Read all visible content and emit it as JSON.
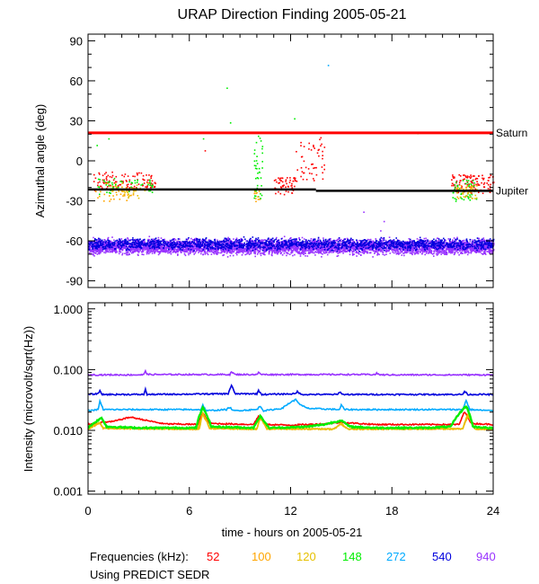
{
  "title": "URAP Direction Finding  2005-05-21",
  "colors": {
    "52": "#ff0000",
    "100": "#ffa500",
    "120": "#e6c000",
    "148": "#00ee00",
    "272": "#00aaff",
    "540": "#0000dd",
    "940": "#9933ff",
    "saturn": "#ff0000",
    "jupiter": "#000000"
  },
  "chart_data": [
    {
      "type": "scatter",
      "title": "URAP Direction Finding  2005-05-21",
      "ylabel": "Azimuthal angle (deg)",
      "xlim": [
        0,
        24
      ],
      "ylim": [
        -95,
        95
      ],
      "yticks": [
        90,
        60,
        30,
        0,
        -30,
        -60,
        -90
      ],
      "reference_lines": [
        {
          "name": "Saturn",
          "y": 21,
          "color": "#ff0000"
        },
        {
          "name": "Jupiter",
          "segments": [
            [
              0,
              13.5,
              -21.5
            ],
            [
              13.5,
              24,
              -22.5
            ]
          ],
          "color": "#000000"
        }
      ],
      "band": {
        "freq": "940",
        "x_range": [
          0,
          24
        ],
        "y_center": -64,
        "y_spread": 8
      },
      "band_540": {
        "freq": "540",
        "x_range": [
          0,
          24
        ],
        "y_center": -62,
        "y_spread": 6
      },
      "clusters": [
        {
          "freq": "52",
          "x": [
            0.3,
            4.0
          ],
          "y": [
            -22,
            -8
          ],
          "n": 120
        },
        {
          "freq": "100",
          "x": [
            0.4,
            2.8
          ],
          "y": [
            -30,
            -18
          ],
          "n": 40
        },
        {
          "freq": "120",
          "x": [
            1.0,
            3.5
          ],
          "y": [
            -28,
            -16
          ],
          "n": 30
        },
        {
          "freq": "148",
          "x": [
            0.5,
            3.8
          ],
          "y": [
            -25,
            -12
          ],
          "n": 50
        },
        {
          "freq": "52",
          "x": [
            11.0,
            12.4
          ],
          "y": [
            -25,
            -12
          ],
          "n": 60
        },
        {
          "freq": "52",
          "x": [
            12.2,
            14.0
          ],
          "y": [
            -15,
            18
          ],
          "n": 50
        },
        {
          "freq": "148",
          "x": [
            9.8,
            10.3
          ],
          "y": [
            -28,
            20
          ],
          "n": 40
        },
        {
          "freq": "100",
          "x": [
            9.8,
            10.2
          ],
          "y": [
            -30,
            -22
          ],
          "n": 10
        },
        {
          "freq": "52",
          "x": [
            21.5,
            24.0
          ],
          "y": [
            -24,
            -10
          ],
          "n": 110
        },
        {
          "freq": "148",
          "x": [
            21.5,
            23.0
          ],
          "y": [
            -30,
            -14
          ],
          "n": 50
        },
        {
          "freq": "100",
          "x": [
            21.8,
            22.8
          ],
          "y": [
            -28,
            -18
          ],
          "n": 25
        },
        {
          "freq": "120",
          "x": [
            22.0,
            23.0
          ],
          "y": [
            -28,
            -18
          ],
          "n": 20
        }
      ],
      "stray_points": [
        {
          "freq": "148",
          "x": 8.2,
          "y": 55
        },
        {
          "freq": "148",
          "x": 8.4,
          "y": 29
        },
        {
          "freq": "148",
          "x": 12.2,
          "y": 32
        },
        {
          "freq": "272",
          "x": 14.2,
          "y": 72
        },
        {
          "freq": "148",
          "x": 6.8,
          "y": 17
        },
        {
          "freq": "148",
          "x": 19.5,
          "y": 21
        },
        {
          "freq": "940",
          "x": 17.5,
          "y": -45
        },
        {
          "freq": "940",
          "x": 16.3,
          "y": -38
        },
        {
          "freq": "940",
          "x": 17.3,
          "y": -52
        },
        {
          "freq": "52",
          "x": 6.9,
          "y": 8
        },
        {
          "freq": "148",
          "x": 1.2,
          "y": 17
        },
        {
          "freq": "148",
          "x": 0.5,
          "y": 12
        }
      ]
    },
    {
      "type": "line",
      "ylabel": "Intensity (microvolt/sqrt(Hz))",
      "xlabel": "time - hours on 2005-05-21",
      "xlim": [
        0,
        24
      ],
      "ylim_log10": [
        -3.05,
        0.1
      ],
      "yticks": [
        1.0,
        0.1,
        0.01,
        0.001
      ],
      "ytick_labels": [
        "1.000",
        "0.100",
        "0.010",
        "0.001"
      ],
      "xticks": [
        0,
        6,
        12,
        18,
        24
      ],
      "xtick_labels": [
        "0",
        "6",
        "12",
        "18",
        "24"
      ],
      "series": [
        {
          "name": "940",
          "base": 0.082,
          "points": [
            [
              0,
              0.082
            ],
            [
              3.3,
              0.082
            ],
            [
              3.4,
              0.097
            ],
            [
              3.5,
              0.083
            ],
            [
              8.4,
              0.083
            ],
            [
              8.5,
              0.092
            ],
            [
              8.7,
              0.083
            ],
            [
              10.0,
              0.083
            ],
            [
              10.1,
              0.089
            ],
            [
              10.3,
              0.083
            ],
            [
              17.0,
              0.083
            ],
            [
              17.1,
              0.087
            ],
            [
              17.3,
              0.082
            ],
            [
              24,
              0.082
            ]
          ]
        },
        {
          "name": "540",
          "base": 0.038,
          "points": [
            [
              0,
              0.039
            ],
            [
              0.6,
              0.04
            ],
            [
              0.7,
              0.046
            ],
            [
              0.8,
              0.039
            ],
            [
              3.3,
              0.039
            ],
            [
              3.4,
              0.047
            ],
            [
              3.5,
              0.039
            ],
            [
              8.3,
              0.04
            ],
            [
              8.5,
              0.055
            ],
            [
              8.7,
              0.04
            ],
            [
              10.0,
              0.04
            ],
            [
              10.1,
              0.045
            ],
            [
              10.3,
              0.039
            ],
            [
              12.3,
              0.04
            ],
            [
              12.4,
              0.044
            ],
            [
              12.6,
              0.039
            ],
            [
              14.8,
              0.039
            ],
            [
              14.9,
              0.043
            ],
            [
              15.1,
              0.039
            ],
            [
              22.2,
              0.039
            ],
            [
              22.3,
              0.044
            ],
            [
              22.5,
              0.039
            ],
            [
              24,
              0.039
            ]
          ]
        },
        {
          "name": "272",
          "base": 0.021,
          "points": [
            [
              0,
              0.021
            ],
            [
              0.6,
              0.022
            ],
            [
              0.7,
              0.03
            ],
            [
              0.9,
              0.022
            ],
            [
              6.7,
              0.022
            ],
            [
              6.8,
              0.026
            ],
            [
              7.0,
              0.021
            ],
            [
              8.2,
              0.022
            ],
            [
              8.4,
              0.024
            ],
            [
              8.6,
              0.021
            ],
            [
              10.0,
              0.022
            ],
            [
              10.2,
              0.025
            ],
            [
              10.4,
              0.021
            ],
            [
              11.5,
              0.023
            ],
            [
              12.0,
              0.029
            ],
            [
              12.3,
              0.032
            ],
            [
              12.6,
              0.026
            ],
            [
              13.0,
              0.023
            ],
            [
              14.9,
              0.022
            ],
            [
              15.0,
              0.026
            ],
            [
              15.2,
              0.022
            ],
            [
              22.2,
              0.022
            ],
            [
              22.4,
              0.031
            ],
            [
              22.6,
              0.022
            ],
            [
              24,
              0.021
            ]
          ]
        },
        {
          "name": "52",
          "base": 0.012,
          "points": [
            [
              0,
              0.0125
            ],
            [
              0.8,
              0.0135
            ],
            [
              1.5,
              0.014
            ],
            [
              2.5,
              0.0165
            ],
            [
              3.5,
              0.0145
            ],
            [
              4.5,
              0.0128
            ],
            [
              6.5,
              0.0125
            ],
            [
              6.8,
              0.019
            ],
            [
              7.2,
              0.013
            ],
            [
              9.8,
              0.0125
            ],
            [
              10.1,
              0.017
            ],
            [
              10.5,
              0.0125
            ],
            [
              12.0,
              0.0122
            ],
            [
              14.0,
              0.0128
            ],
            [
              15.0,
              0.0135
            ],
            [
              17.0,
              0.0125
            ],
            [
              22.0,
              0.0125
            ],
            [
              22.3,
              0.02
            ],
            [
              22.7,
              0.013
            ],
            [
              24,
              0.0125
            ]
          ]
        },
        {
          "name": "100",
          "base": 0.0105,
          "points": [
            [
              0,
              0.0105
            ],
            [
              0.7,
              0.013
            ],
            [
              0.9,
              0.0108
            ],
            [
              6.5,
              0.0105
            ],
            [
              6.8,
              0.018
            ],
            [
              7.2,
              0.0108
            ],
            [
              10.0,
              0.0105
            ],
            [
              10.2,
              0.016
            ],
            [
              10.6,
              0.0106
            ],
            [
              14.5,
              0.0105
            ],
            [
              15.0,
              0.0125
            ],
            [
              15.4,
              0.0105
            ],
            [
              22.2,
              0.0106
            ],
            [
              22.5,
              0.017
            ],
            [
              22.9,
              0.0105
            ],
            [
              24,
              0.0105
            ]
          ]
        },
        {
          "name": "120",
          "base": 0.0105,
          "points": [
            [
              0,
              0.0105
            ],
            [
              0.7,
              0.0135
            ],
            [
              0.9,
              0.0108
            ],
            [
              6.6,
              0.0105
            ],
            [
              6.8,
              0.019
            ],
            [
              7.2,
              0.0108
            ],
            [
              10.0,
              0.0105
            ],
            [
              10.2,
              0.0165
            ],
            [
              10.6,
              0.0106
            ],
            [
              14.6,
              0.0105
            ],
            [
              15.0,
              0.013
            ],
            [
              15.4,
              0.0105
            ],
            [
              22.2,
              0.0107
            ],
            [
              22.5,
              0.018
            ],
            [
              22.9,
              0.0105
            ],
            [
              24,
              0.0105
            ]
          ]
        },
        {
          "name": "148",
          "base": 0.0108,
          "points": [
            [
              0,
              0.011
            ],
            [
              0.8,
              0.016
            ],
            [
              1.1,
              0.0115
            ],
            [
              3.0,
              0.011
            ],
            [
              6.4,
              0.011
            ],
            [
              6.8,
              0.0235
            ],
            [
              7.3,
              0.0115
            ],
            [
              9.8,
              0.011
            ],
            [
              10.2,
              0.017
            ],
            [
              10.7,
              0.011
            ],
            [
              12.0,
              0.0112
            ],
            [
              13.0,
              0.0115
            ],
            [
              14.0,
              0.0125
            ],
            [
              15.0,
              0.0145
            ],
            [
              15.5,
              0.0115
            ],
            [
              17.0,
              0.011
            ],
            [
              20.0,
              0.011
            ],
            [
              21.5,
              0.0115
            ],
            [
              22.4,
              0.025
            ],
            [
              22.8,
              0.0115
            ],
            [
              24,
              0.0108
            ]
          ]
        }
      ]
    }
  ],
  "legend": {
    "prefix": "Frequencies (kHz):",
    "items": [
      "52",
      "100",
      "120",
      "148",
      "272",
      "540",
      "940"
    ]
  },
  "footnote": "Using PREDICT SEDR"
}
